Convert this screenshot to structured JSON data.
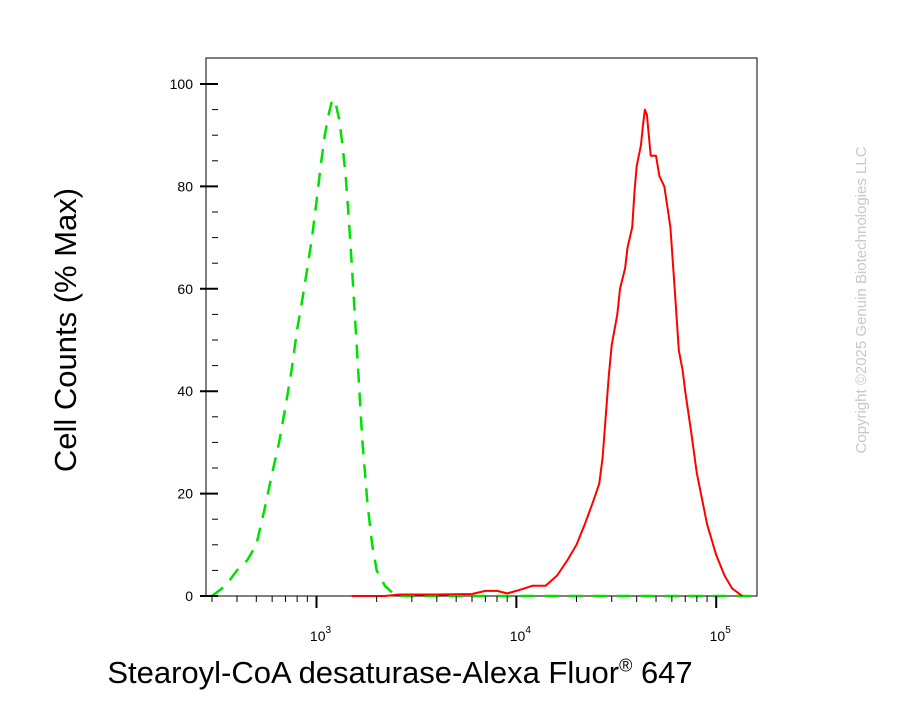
{
  "chart_data": {
    "type": "line",
    "title": "",
    "xlabel": "Stearoyl-CoA desaturase-Alexa Fluor",
    "xlabel_mark": "®",
    "xlabel_suffix": " 647",
    "ylabel": "Cell Counts (% Max)",
    "x_scale": "log",
    "xlim": [
      280,
      160000
    ],
    "ylim": [
      0,
      100
    ],
    "x_ticks": [
      {
        "value": 1000,
        "base": "10",
        "exp": "3"
      },
      {
        "value": 10000,
        "base": "10",
        "exp": "4"
      },
      {
        "value": 100000,
        "base": "10",
        "exp": "5"
      }
    ],
    "y_ticks": [
      "0",
      "20",
      "40",
      "60",
      "80",
      "100"
    ],
    "grid": false,
    "legend": "none",
    "series": [
      {
        "style": "dashed",
        "color": "#00e000",
        "points": [
          [
            300,
            0
          ],
          [
            350,
            2
          ],
          [
            400,
            5
          ],
          [
            450,
            7
          ],
          [
            500,
            10
          ],
          [
            550,
            17
          ],
          [
            600,
            24
          ],
          [
            650,
            30
          ],
          [
            700,
            37
          ],
          [
            750,
            44
          ],
          [
            800,
            52
          ],
          [
            850,
            58
          ],
          [
            900,
            64
          ],
          [
            950,
            70
          ],
          [
            1000,
            77
          ],
          [
            1050,
            84
          ],
          [
            1100,
            90
          ],
          [
            1150,
            94
          ],
          [
            1200,
            97
          ],
          [
            1250,
            96
          ],
          [
            1300,
            93
          ],
          [
            1350,
            88
          ],
          [
            1400,
            82
          ],
          [
            1450,
            74
          ],
          [
            1500,
            65
          ],
          [
            1550,
            56
          ],
          [
            1600,
            47
          ],
          [
            1650,
            38
          ],
          [
            1700,
            30
          ],
          [
            1800,
            18
          ],
          [
            1900,
            10
          ],
          [
            2000,
            5
          ],
          [
            2200,
            2
          ],
          [
            2500,
            0
          ],
          [
            4000,
            0
          ],
          [
            10000,
            0
          ],
          [
            30000,
            0
          ],
          [
            100000,
            0
          ],
          [
            150000,
            0
          ]
        ]
      },
      {
        "style": "solid",
        "color": "#ff0000",
        "points": [
          [
            1500,
            0
          ],
          [
            2200,
            0
          ],
          [
            2600,
            0.3
          ],
          [
            4000,
            0.3
          ],
          [
            6000,
            0.4
          ],
          [
            7000,
            1
          ],
          [
            8000,
            1
          ],
          [
            9000,
            0.5
          ],
          [
            10000,
            1
          ],
          [
            11000,
            1.5
          ],
          [
            12000,
            2
          ],
          [
            13000,
            2
          ],
          [
            14000,
            2
          ],
          [
            16000,
            4
          ],
          [
            18000,
            7
          ],
          [
            20000,
            10
          ],
          [
            22000,
            14
          ],
          [
            24000,
            18
          ],
          [
            25000,
            20
          ],
          [
            26000,
            22
          ],
          [
            27000,
            27
          ],
          [
            28000,
            35
          ],
          [
            29000,
            43
          ],
          [
            30000,
            49
          ],
          [
            32000,
            55
          ],
          [
            33000,
            60
          ],
          [
            35000,
            64
          ],
          [
            36000,
            68
          ],
          [
            38000,
            72
          ],
          [
            39000,
            79
          ],
          [
            40000,
            84
          ],
          [
            42000,
            88
          ],
          [
            43000,
            92
          ],
          [
            44000,
            95
          ],
          [
            45000,
            94
          ],
          [
            46000,
            90
          ],
          [
            47000,
            86
          ],
          [
            50000,
            86
          ],
          [
            52000,
            82
          ],
          [
            55000,
            80
          ],
          [
            57000,
            76
          ],
          [
            59000,
            72
          ],
          [
            62000,
            60
          ],
          [
            65000,
            48
          ],
          [
            68000,
            44
          ],
          [
            70000,
            40
          ],
          [
            75000,
            32
          ],
          [
            80000,
            24
          ],
          [
            90000,
            14
          ],
          [
            100000,
            8
          ],
          [
            110000,
            4
          ],
          [
            120000,
            1.5
          ],
          [
            135000,
            0
          ]
        ]
      }
    ]
  },
  "watermark": "Copyright ©2025 Genuin Biotechnologies LLC"
}
